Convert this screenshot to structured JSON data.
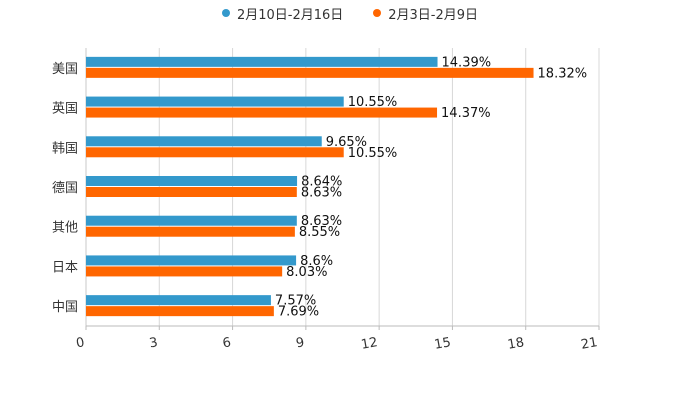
{
  "chart_data": {
    "type": "bar",
    "orientation": "horizontal",
    "title": "",
    "xlabel": "",
    "ylabel": "",
    "categories": [
      "美国",
      "英国",
      "韩国",
      "德国",
      "其他",
      "日本",
      "中国"
    ],
    "series": [
      {
        "name": "2月10日-2月16日",
        "color": "#3399CC",
        "values": [
          14.39,
          10.55,
          9.65,
          8.64,
          8.63,
          8.6,
          7.57
        ],
        "labels": [
          "14.39%",
          "10.55%",
          "9.65%",
          "8.64%",
          "8.63%",
          "8.6%",
          "7.57%"
        ]
      },
      {
        "name": "2月3日-2月9日",
        "color": "#FF6600",
        "values": [
          18.32,
          14.37,
          10.55,
          8.63,
          8.55,
          8.03,
          7.69
        ],
        "labels": [
          "18.32%",
          "14.37%",
          "10.55%",
          "8.63%",
          "8.55%",
          "8.03%",
          "7.69%"
        ]
      }
    ],
    "xlim": [
      0,
      21
    ],
    "xticks": [
      "0",
      "3",
      "6",
      "9",
      "12",
      "15",
      "18",
      "21"
    ],
    "grid": true,
    "legend_position": "top-center"
  }
}
